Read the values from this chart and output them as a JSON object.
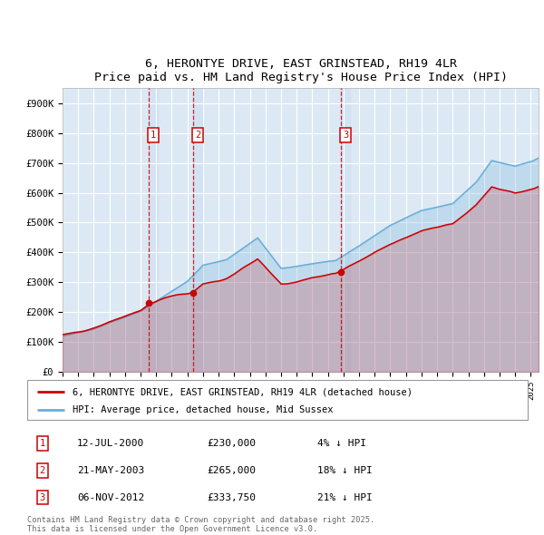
{
  "title": "6, HERONTYE DRIVE, EAST GRINSTEAD, RH19 4LR",
  "subtitle": "Price paid vs. HM Land Registry's House Price Index (HPI)",
  "plot_bg_color": "#dce9f5",
  "grid_color": "#ffffff",
  "hpi_color": "#6baed6",
  "price_color": "#cc0000",
  "sale_color": "#cc0000",
  "ylim": [
    0,
    950000
  ],
  "yticks": [
    0,
    100000,
    200000,
    300000,
    400000,
    500000,
    600000,
    700000,
    800000,
    900000
  ],
  "ytick_labels": [
    "£0",
    "£100K",
    "£200K",
    "£300K",
    "£400K",
    "£500K",
    "£600K",
    "£700K",
    "£800K",
    "£900K"
  ],
  "xlim_start": 1995,
  "xlim_end": 2025.5,
  "sales": [
    {
      "date_num": 2000.53,
      "price": 230000,
      "label": "1"
    },
    {
      "date_num": 2003.37,
      "price": 265000,
      "label": "2"
    },
    {
      "date_num": 2012.85,
      "price": 333750,
      "label": "3"
    }
  ],
  "legend_line1": "6, HERONTYE DRIVE, EAST GRINSTEAD, RH19 4LR (detached house)",
  "legend_line2": "HPI: Average price, detached house, Mid Sussex",
  "table_entries": [
    {
      "label": "1",
      "date": "12-JUL-2000",
      "price": "£230,000",
      "pct": "4% ↓ HPI"
    },
    {
      "label": "2",
      "date": "21-MAY-2003",
      "price": "£265,000",
      "pct": "18% ↓ HPI"
    },
    {
      "label": "3",
      "date": "06-NOV-2012",
      "price": "£333,750",
      "pct": "21% ↓ HPI"
    }
  ],
  "footnote": "Contains HM Land Registry data © Crown copyright and database right 2025.\nThis data is licensed under the Open Government Licence v3.0."
}
